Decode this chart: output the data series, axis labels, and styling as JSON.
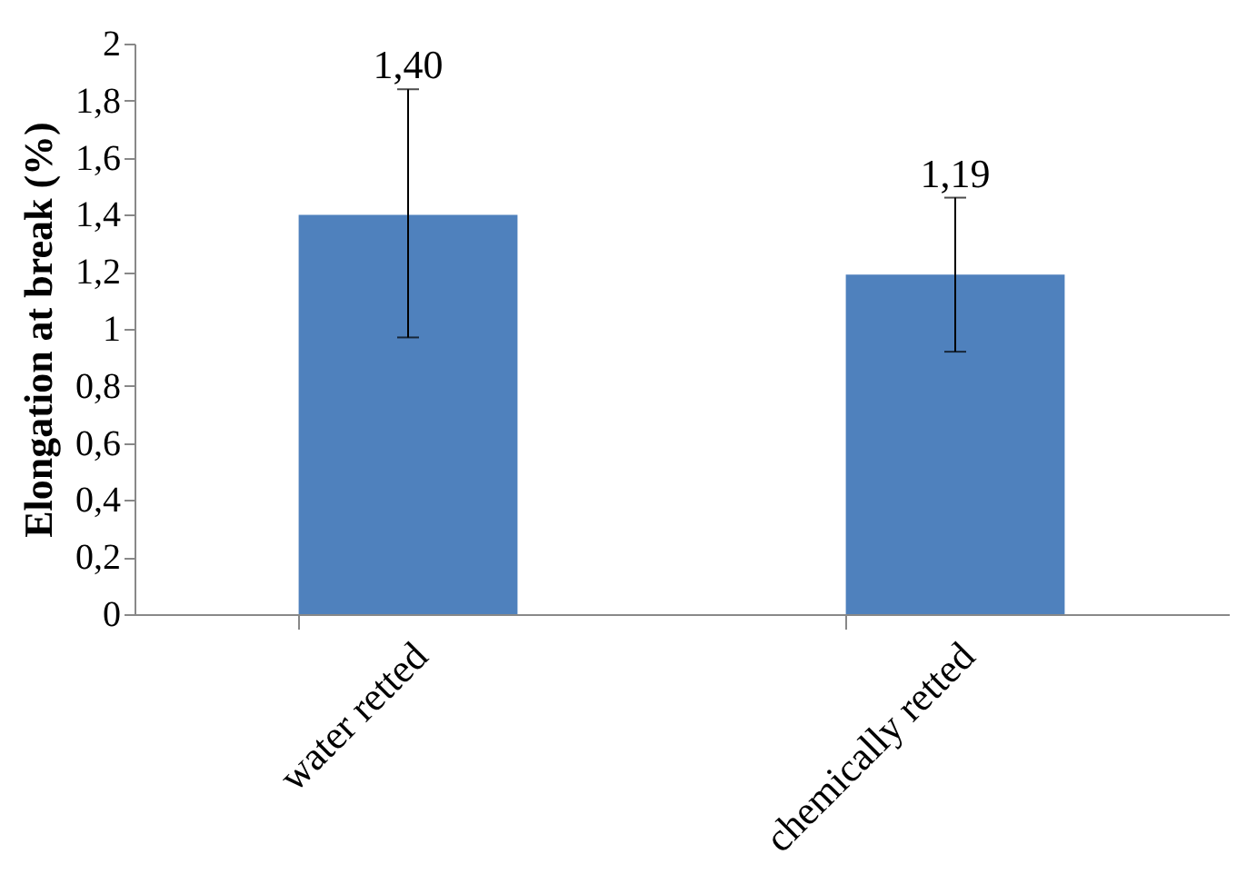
{
  "chart_data": {
    "type": "bar",
    "ylabel": "Elongation at break (%)",
    "categories": [
      "water retted",
      "chemically retted"
    ],
    "values": [
      1.4,
      1.19
    ],
    "color": "#4f81bd",
    "errors": [
      [
        0.97,
        1.84
      ],
      [
        0.92,
        1.46
      ]
    ],
    "value_labels": [
      "1,40",
      "1,19"
    ],
    "ylim": [
      0,
      2
    ],
    "yticks": [
      0,
      {
        "value": 0.2,
        "label": "0,2"
      },
      {
        "value": 0.4,
        "label": "0,4"
      },
      {
        "value": 0.6,
        "label": "0,6"
      },
      {
        "value": 0.8,
        "label": "0,8"
      },
      1,
      {
        "value": 1.2,
        "label": "1,2"
      },
      {
        "value": 1.4,
        "label": "1,4"
      },
      {
        "value": 1.6,
        "label": "1,6"
      },
      {
        "value": 1.8,
        "label": "1,8"
      },
      2
    ],
    "grid": false
  }
}
